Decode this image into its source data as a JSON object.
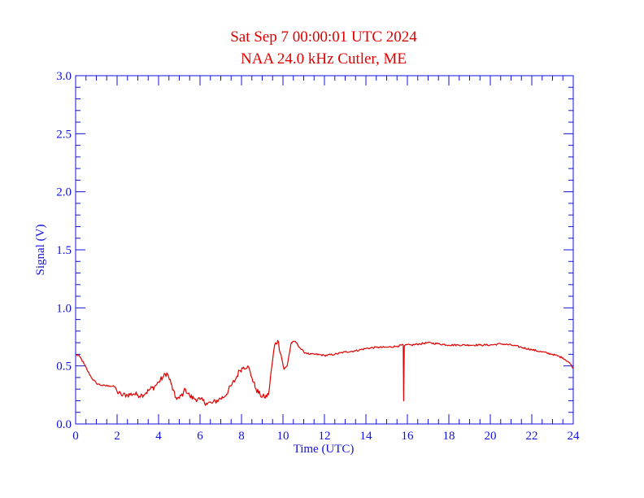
{
  "chart_data": {
    "type": "line",
    "title": "Sat Sep 7 00:00:01 UTC 2024",
    "subtitle": "NAA 24.0 kHz Cutler, ME",
    "xlabel": "Time (UTC)",
    "ylabel": "Signal (V)",
    "xlim": [
      0,
      24
    ],
    "ylim": [
      0,
      3.0
    ],
    "x_ticks": [
      "0",
      "2",
      "4",
      "6",
      "8",
      "10",
      "12",
      "14",
      "16",
      "18",
      "20",
      "22",
      "24"
    ],
    "y_ticks": [
      "0.0",
      "0.5",
      "1.0",
      "1.5",
      "2.0",
      "2.5",
      "3.0"
    ],
    "grid": false,
    "colors": {
      "series": "#e00000",
      "axes": "#1010e0",
      "title": "#e00000"
    },
    "series": [
      {
        "x": [
          0,
          0.2,
          0.4,
          0.6,
          0.8,
          1.0,
          1.3,
          1.6,
          1.9,
          2.0,
          2.2,
          2.5,
          2.8,
          3.0,
          3.2,
          3.4,
          3.6,
          3.8,
          4.0,
          4.2,
          4.4,
          4.6,
          4.8,
          5.0,
          5.2,
          5.3,
          5.5,
          5.7,
          6.0,
          6.3,
          6.6,
          6.9,
          7.2,
          7.5,
          7.7,
          7.9,
          8.1,
          8.3,
          8.5,
          8.7,
          8.9,
          9.1,
          9.3,
          9.5,
          9.6,
          9.75,
          9.9,
          10.05,
          10.2,
          10.4,
          10.6,
          10.8,
          11.0,
          11.3,
          11.6,
          12.0,
          12.5,
          13.0,
          13.5,
          14.0,
          14.5,
          15.0,
          15.5,
          15.8,
          15.82,
          15.85,
          15.9,
          16.2,
          16.6,
          17.0,
          17.5,
          18.0,
          18.5,
          19.0,
          19.5,
          20.0,
          20.5,
          21.0,
          21.5,
          22.0,
          22.5,
          23.0,
          23.5,
          23.8,
          24.0
        ],
        "values": [
          0.6,
          0.58,
          0.52,
          0.45,
          0.39,
          0.35,
          0.33,
          0.33,
          0.32,
          0.28,
          0.25,
          0.25,
          0.26,
          0.25,
          0.25,
          0.27,
          0.3,
          0.32,
          0.36,
          0.4,
          0.44,
          0.35,
          0.23,
          0.22,
          0.27,
          0.3,
          0.24,
          0.22,
          0.21,
          0.18,
          0.18,
          0.21,
          0.24,
          0.33,
          0.38,
          0.46,
          0.49,
          0.5,
          0.4,
          0.3,
          0.25,
          0.23,
          0.25,
          0.55,
          0.68,
          0.72,
          0.6,
          0.47,
          0.5,
          0.7,
          0.71,
          0.66,
          0.62,
          0.6,
          0.6,
          0.59,
          0.6,
          0.62,
          0.63,
          0.65,
          0.66,
          0.66,
          0.67,
          0.68,
          0.2,
          0.67,
          0.68,
          0.68,
          0.69,
          0.7,
          0.69,
          0.68,
          0.68,
          0.68,
          0.68,
          0.68,
          0.69,
          0.68,
          0.66,
          0.64,
          0.62,
          0.6,
          0.57,
          0.53,
          0.48
        ]
      }
    ]
  }
}
